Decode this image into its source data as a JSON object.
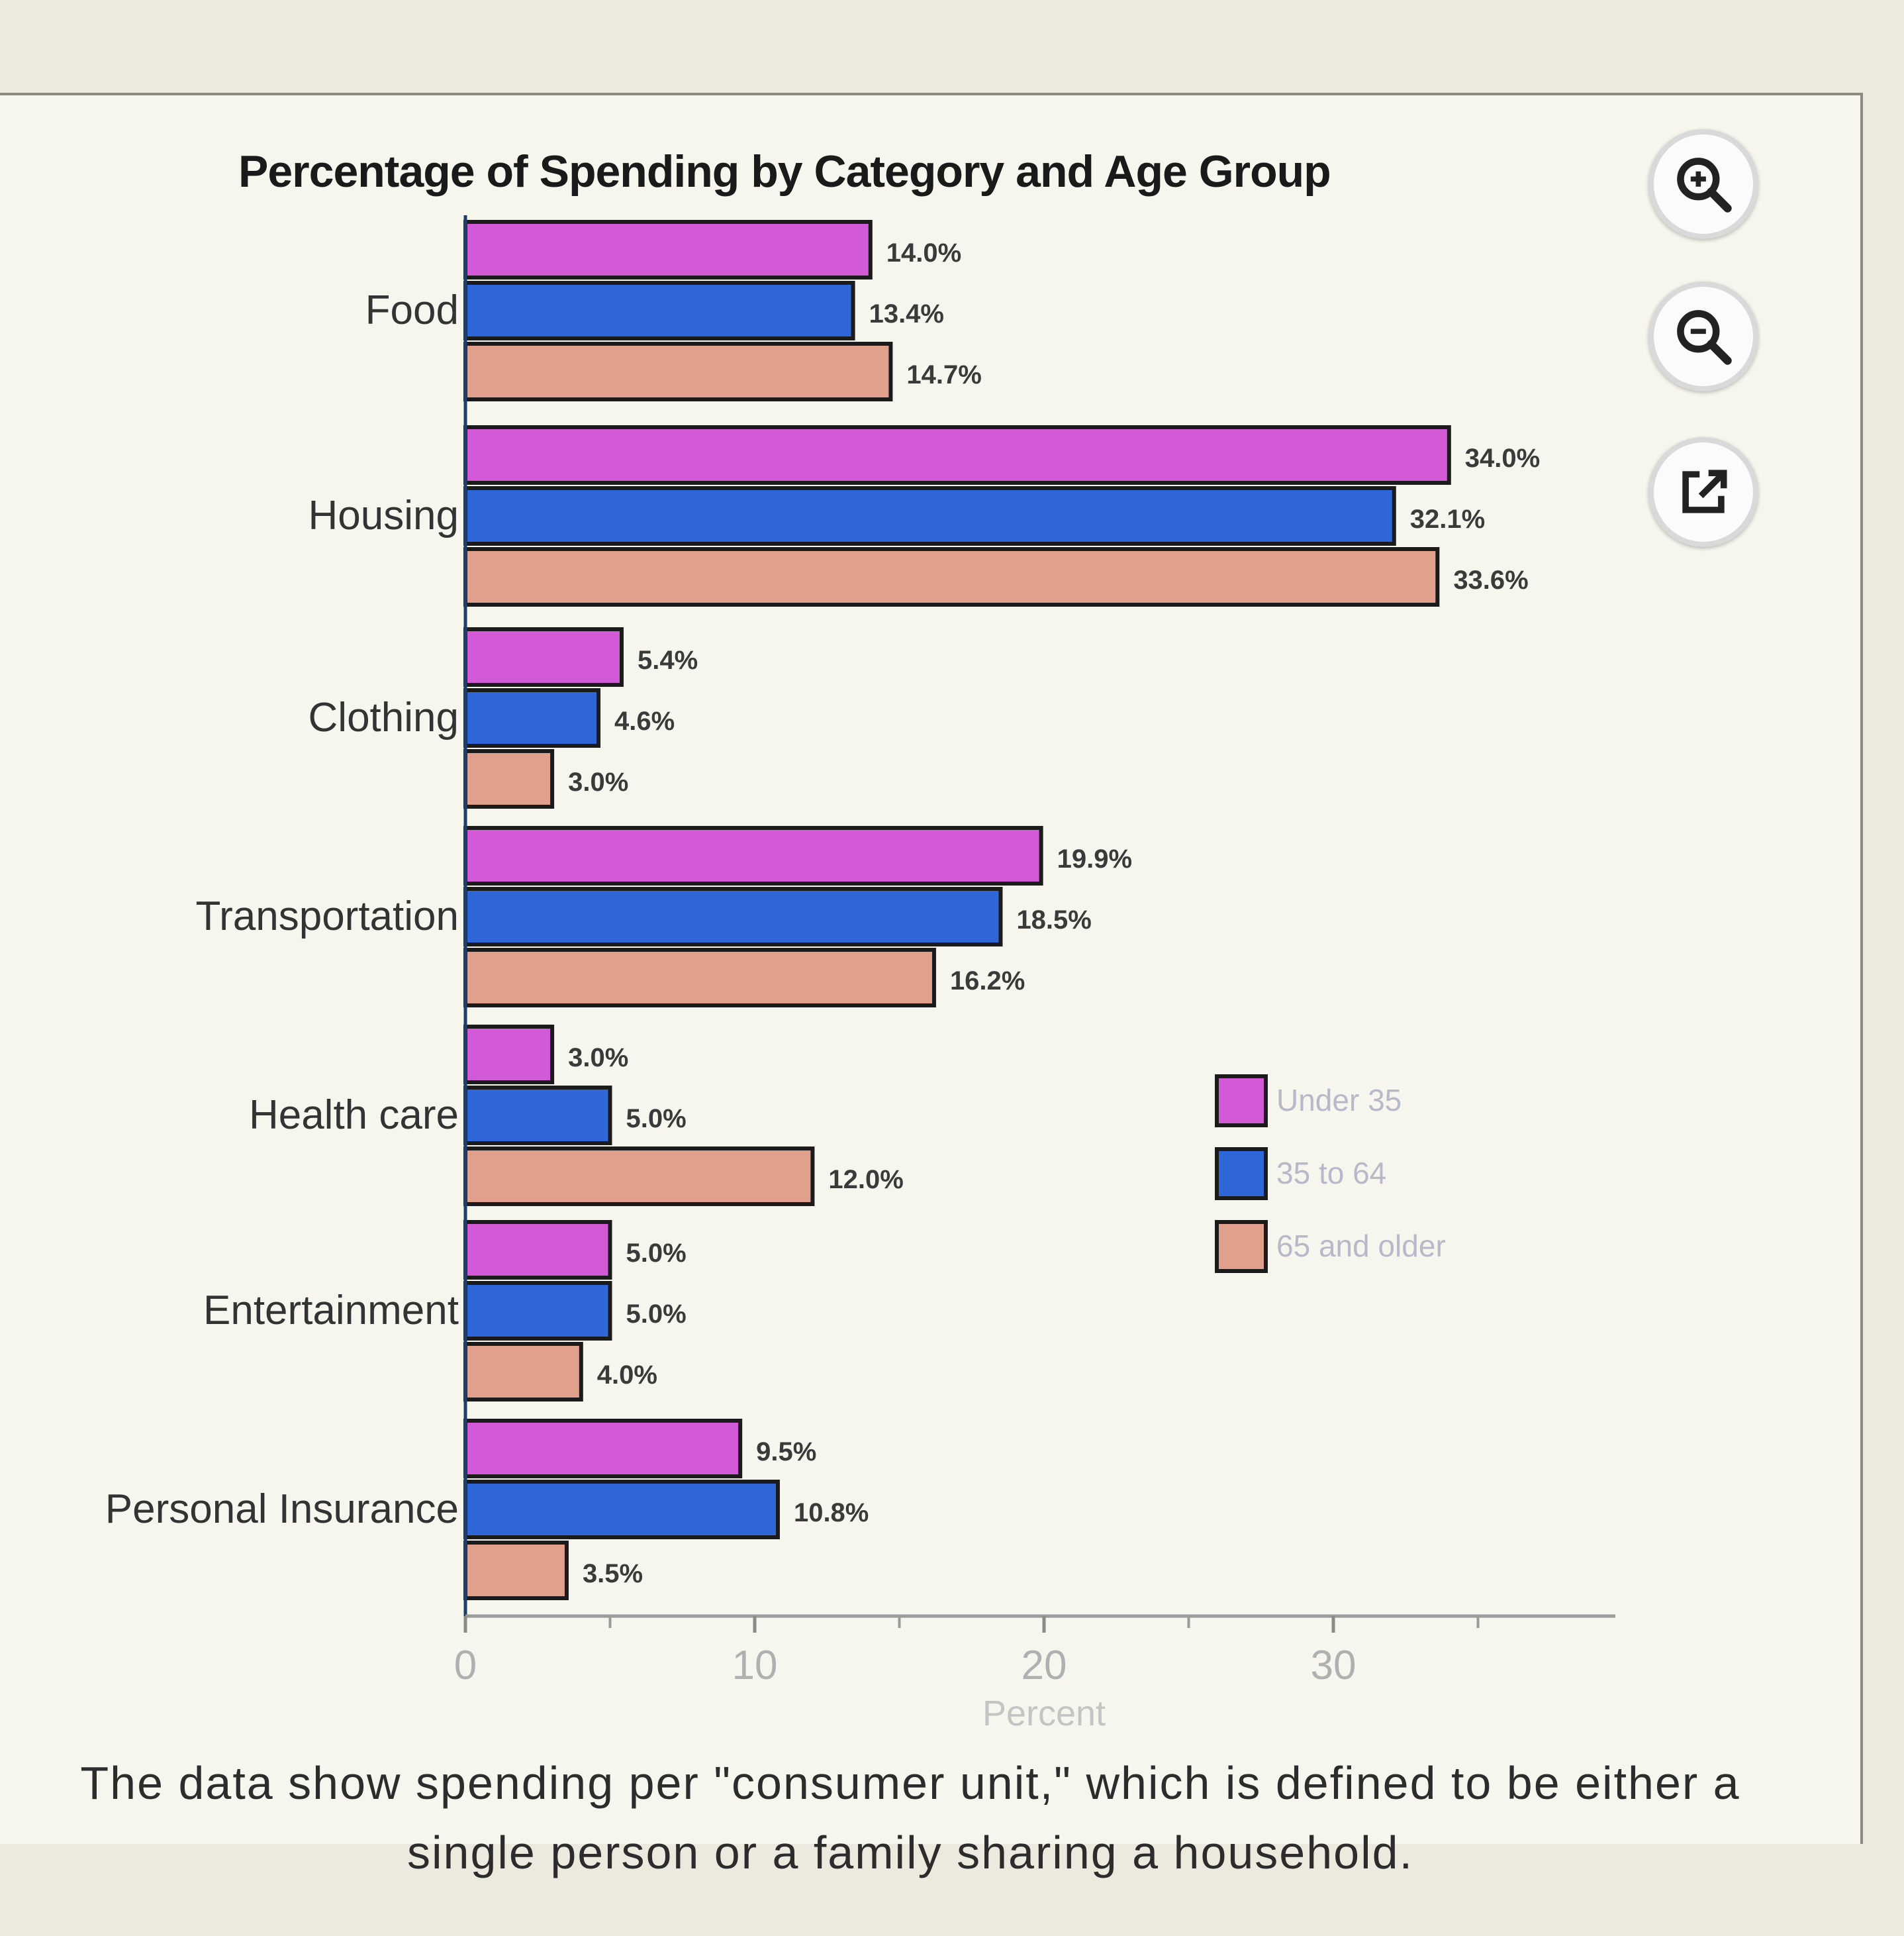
{
  "chart_data": {
    "type": "bar",
    "orientation": "horizontal",
    "title": "Percentage of Spending by Category and Age Group",
    "xlabel": "Percent",
    "ylabel": "",
    "xlim": [
      0,
      40
    ],
    "xticks": [
      0,
      10,
      20,
      30
    ],
    "categories": [
      "Food",
      "Housing",
      "Clothing",
      "Transportation",
      "Health care",
      "Entertainment",
      "Personal Insurance"
    ],
    "series": [
      {
        "name": "Under 35",
        "color": "#d35ad6",
        "values": [
          14.0,
          34.0,
          5.4,
          19.9,
          3.0,
          5.0,
          9.5
        ],
        "labels": [
          "14.0%",
          "34.0%",
          "5.4%",
          "19.9%",
          "3.0%",
          "5.0%",
          "9.5%"
        ]
      },
      {
        "name": "35 to 64",
        "color": "#2f66d8",
        "values": [
          13.4,
          32.1,
          4.6,
          18.5,
          5.0,
          5.0,
          10.8
        ],
        "labels": [
          "13.4%",
          "32.1%",
          "4.6%",
          "18.5%",
          "5.0%",
          "5.0%",
          "10.8%"
        ]
      },
      {
        "name": "65 and older",
        "color": "#e0a08c",
        "values": [
          14.7,
          33.6,
          3.0,
          16.2,
          12.0,
          4.0,
          3.5
        ],
        "labels": [
          "14.7%",
          "33.6%",
          "3.0%",
          "16.2%",
          "12.0%",
          "4.0%",
          "3.5%"
        ]
      }
    ],
    "legend_position": "right-middle",
    "grid": false
  },
  "toolbar": {
    "zoom_in_icon": "zoom-in-icon",
    "zoom_out_icon": "zoom-out-icon",
    "open_external_icon": "open-external-icon"
  },
  "footnote": "The data show spending per \"consumer unit,\" which is defined to be either a single person or a family sharing a household."
}
